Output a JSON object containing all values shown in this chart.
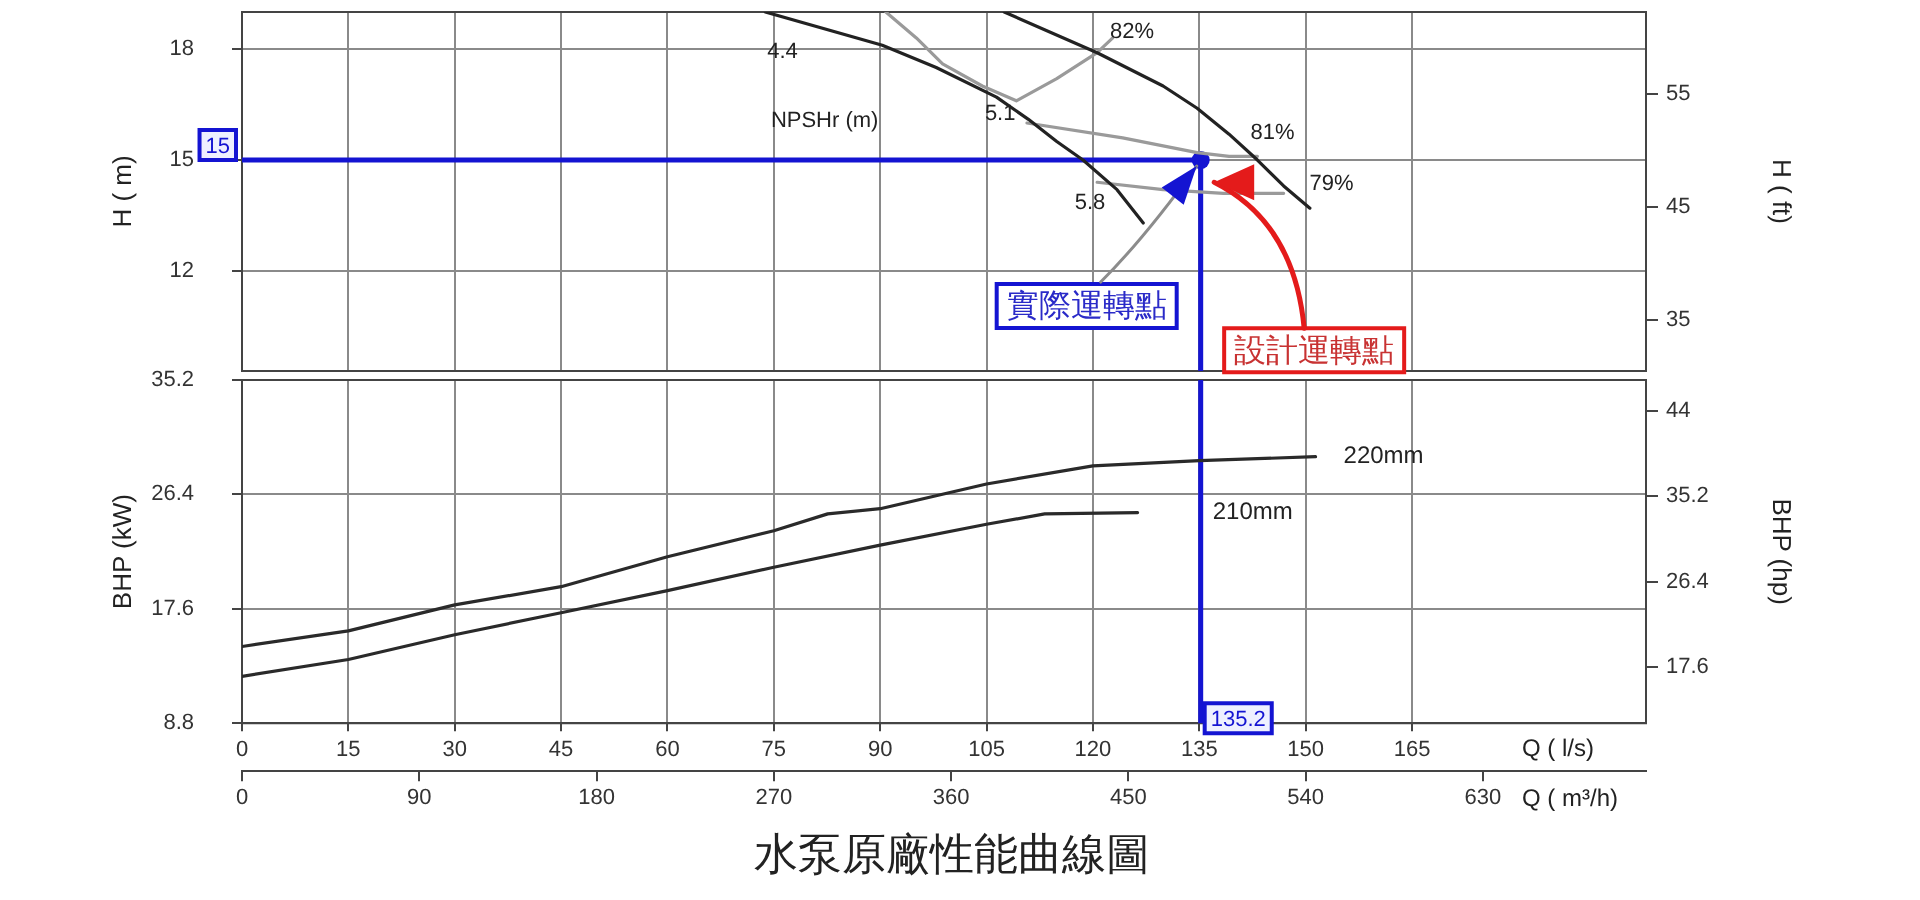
{
  "chart_data": [
    {
      "type": "line",
      "ylabel": "H ( m)",
      "y2label": "H ( ft)",
      "xlim": [
        0,
        198
      ],
      "xticks": [
        0,
        15,
        30,
        45,
        60,
        75,
        90,
        105,
        120,
        135,
        150,
        165
      ],
      "ylim": [
        9.3,
        19
      ],
      "yticks": [
        12,
        15,
        18
      ],
      "y2lim": [
        30.5,
        62.3
      ],
      "y2ticks": [
        35,
        45,
        55
      ],
      "tick_labels": "y",
      "grid": true,
      "series": [
        {
          "color": "#222222",
          "x": [
            73.8,
            90.3,
            97.9,
            106.4,
            110.9,
            114.9,
            118.6,
            123.4,
            127.1
          ],
          "values": [
            19.0,
            18.1,
            17.5,
            16.7,
            16.1,
            15.5,
            15.0,
            14.2,
            13.3
          ]
        },
        {
          "color": "#222222",
          "x": [
            107.5,
            120.6,
            129.9,
            134.7,
            139.2,
            143.2,
            146.9,
            150.6
          ],
          "values": [
            19.0,
            17.9,
            17.0,
            16.4,
            15.7,
            15.0,
            14.3,
            13.7
          ]
        },
        {
          "color": "#9a9a9a",
          "x": [
            90.8,
            95.1,
            98.8,
            104.4,
            109.2,
            114.9,
            120.6,
            122.8
          ],
          "values": [
            19.0,
            18.3,
            17.6,
            17.0,
            16.6,
            17.2,
            17.9,
            18.3
          ]
        },
        {
          "color": "#9a9a9a",
          "x": [
            110.7,
            124.2,
            134.7,
            139.2,
            143.2
          ],
          "values": [
            16.0,
            15.6,
            15.2,
            15.1,
            15.1
          ]
        },
        {
          "color": "#9a9a9a",
          "x": [
            120.6,
            129.9,
            138.4,
            146.9
          ],
          "values": [
            14.4,
            14.2,
            14.1,
            14.1
          ]
        },
        {
          "type": "scatter",
          "color": "#1414d2",
          "marker": "circle",
          "x": [
            135.2
          ],
          "values": [
            15
          ]
        }
      ],
      "ref_lines": [
        {
          "axis": "y",
          "value": 15,
          "label": "15",
          "color": "#1414d2"
        },
        {
          "axis": "x",
          "value": 135.2,
          "color": "#1414d2"
        }
      ],
      "annotations": [
        "NPSHr (m)",
        "4.4",
        "5.1",
        "5.8",
        "82%",
        "81%",
        "79%",
        {
          "text": "實際運轉點",
          "x": 135.2,
          "y": 15
        },
        {
          "text": "設計運轉點",
          "x": 137.1,
          "y": 14.4
        }
      ]
    },
    {
      "type": "line",
      "title": "水泵原廠性能曲線圖",
      "xlabel": "Q ( l/s)",
      "x2label": "Q ( m³/h)",
      "ylabel": "BHP (kW)",
      "y2label": "BHP (hp)",
      "xlim": [
        0,
        198
      ],
      "xticks": [
        0,
        15,
        30,
        45,
        60,
        75,
        90,
        105,
        120,
        135,
        150,
        165
      ],
      "x2lim": [
        0,
        712.8
      ],
      "x2ticks": [
        0,
        90,
        180,
        270,
        360,
        450,
        540,
        630
      ],
      "ylim": [
        8.8,
        35.2
      ],
      "yticks": [
        8.8,
        17.6,
        26.4,
        35.2
      ],
      "y2lim": [
        11.8,
        47.2
      ],
      "y2ticks": [
        17.6,
        26.4,
        35.2,
        44
      ],
      "grid": true,
      "series": [
        {
          "name": "220mm",
          "color": "#2a2a2a",
          "x": [
            0,
            15,
            30,
            45,
            60,
            75,
            82.6,
            90,
            105,
            120,
            135,
            151.4
          ],
          "values": [
            14.7,
            15.9,
            17.9,
            19.3,
            21.6,
            23.6,
            24.9,
            25.3,
            27.2,
            28.6,
            29.0,
            29.3
          ]
        },
        {
          "name": "210mm",
          "color": "#2a2a2a",
          "x": [
            0,
            15,
            30,
            45,
            60,
            75,
            90,
            105,
            113.2,
            126.3
          ],
          "values": [
            12.4,
            13.7,
            15.6,
            17.3,
            19.0,
            20.8,
            22.5,
            24.1,
            24.9,
            25.0
          ]
        }
      ],
      "ref_lines": [
        {
          "axis": "x",
          "value": 135.2,
          "label": "135.2",
          "color": "#1414d2"
        }
      ]
    }
  ]
}
